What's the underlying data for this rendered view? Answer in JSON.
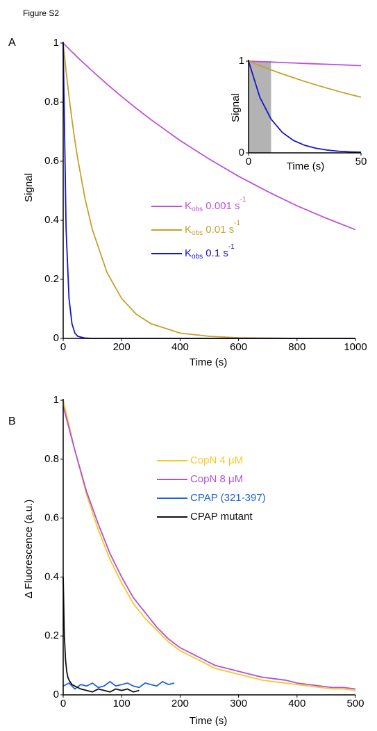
{
  "figure_label": "Figure S2",
  "chart_data": [
    {
      "type": "line",
      "panel_label": "A",
      "xlabel": "Time (s)",
      "ylabel": "Signal",
      "x": [
        0,
        10,
        20,
        30,
        40,
        50,
        75,
        100,
        150,
        200,
        250,
        300,
        400,
        500,
        600,
        700,
        800,
        900,
        1000
      ],
      "xlim": [
        0,
        1000
      ],
      "xticks": [
        0,
        200,
        400,
        600,
        800,
        1000
      ],
      "ylim": [
        0,
        1
      ],
      "yticks": [
        0,
        0.2,
        0.4,
        0.6,
        0.8,
        1
      ],
      "series": [
        {
          "name": "Kobs 0.001 s-1",
          "color": "#c050d8",
          "values": [
            1,
            0.99,
            0.98,
            0.97,
            0.961,
            0.951,
            0.928,
            0.905,
            0.861,
            0.819,
            0.779,
            0.741,
            0.67,
            0.607,
            0.549,
            0.497,
            0.449,
            0.407,
            0.368
          ]
        },
        {
          "name": "Kobs 0.01 s-1",
          "color": "#c8a028",
          "values": [
            1,
            0.905,
            0.819,
            0.741,
            0.67,
            0.607,
            0.472,
            0.368,
            0.223,
            0.135,
            0.082,
            0.05,
            0.018,
            0.007,
            0.002,
            0.001,
            0,
            0,
            0
          ]
        },
        {
          "name": "Kobs 0.1 s-1",
          "color": "#1414c8",
          "values": [
            1,
            0.368,
            0.135,
            0.05,
            0.018,
            0.007,
            0.001,
            0,
            0,
            0,
            0,
            0,
            0,
            0,
            0,
            0,
            0,
            0,
            0
          ]
        }
      ]
    },
    {
      "type": "line",
      "xlabel": "Time (s)",
      "ylabel": "Signal",
      "x": [
        0,
        5,
        10,
        15,
        20,
        25,
        30,
        35,
        40,
        45,
        50
      ],
      "xlim": [
        0,
        50
      ],
      "xticks": [
        0,
        50
      ],
      "ylim": [
        0,
        1
      ],
      "yticks": [
        0,
        1
      ],
      "shaded_region": [
        0,
        10
      ],
      "series": [
        {
          "color": "#c050d8",
          "values": [
            1,
            0.995,
            0.99,
            0.985,
            0.98,
            0.975,
            0.97,
            0.966,
            0.961,
            0.956,
            0.951
          ]
        },
        {
          "color": "#c8a028",
          "values": [
            1,
            0.951,
            0.905,
            0.861,
            0.819,
            0.779,
            0.741,
            0.705,
            0.67,
            0.638,
            0.607
          ]
        },
        {
          "color": "#1414c8",
          "values": [
            1,
            0.607,
            0.368,
            0.223,
            0.135,
            0.082,
            0.05,
            0.03,
            0.018,
            0.011,
            0.007
          ]
        }
      ]
    },
    {
      "type": "line",
      "panel_label": "B",
      "xlabel": "Time (s)",
      "ylabel": "Δ Fluorescence (a.u.)",
      "xlim": [
        0,
        500
      ],
      "xticks": [
        0,
        100,
        200,
        300,
        400,
        500
      ],
      "ylim": [
        0,
        1
      ],
      "yticks": [
        0,
        0.2,
        0.4,
        0.6,
        0.8,
        1
      ],
      "series": [
        {
          "name": "CopN 4 μM",
          "color": "#f5c825",
          "x": [
            0,
            20,
            40,
            60,
            80,
            100,
            120,
            140,
            160,
            180,
            200,
            220,
            240,
            260,
            280,
            300,
            320,
            340,
            360,
            380,
            400,
            420,
            440,
            460,
            480,
            500
          ],
          "values": [
            1,
            0.83,
            0.68,
            0.56,
            0.46,
            0.38,
            0.31,
            0.26,
            0.22,
            0.18,
            0.15,
            0.13,
            0.11,
            0.09,
            0.08,
            0.07,
            0.06,
            0.05,
            0.045,
            0.04,
            0.035,
            0.03,
            0.025,
            0.02,
            0.02,
            0.015
          ]
        },
        {
          "name": "CopN 8 μM",
          "color": "#b450d2",
          "x": [
            0,
            20,
            40,
            60,
            80,
            100,
            120,
            140,
            160,
            180,
            200,
            220,
            240,
            260,
            280,
            300,
            320,
            340,
            360,
            380,
            400,
            420,
            440,
            460,
            480,
            500
          ],
          "values": [
            0.98,
            0.83,
            0.69,
            0.58,
            0.48,
            0.4,
            0.33,
            0.28,
            0.23,
            0.19,
            0.16,
            0.14,
            0.12,
            0.1,
            0.09,
            0.08,
            0.07,
            0.06,
            0.055,
            0.05,
            0.04,
            0.035,
            0.03,
            0.025,
            0.025,
            0.02
          ]
        },
        {
          "name": "CPAP (321-397)",
          "color": "#1f62e0",
          "x": [
            0,
            10,
            20,
            30,
            40,
            50,
            60,
            70,
            80,
            90,
            100,
            110,
            120,
            130,
            140,
            150,
            160,
            170,
            180,
            190
          ],
          "values": [
            0.03,
            0.04,
            0.02,
            0.035,
            0.03,
            0.04,
            0.025,
            0.03,
            0.045,
            0.03,
            0.035,
            0.04,
            0.03,
            0.025,
            0.04,
            0.035,
            0.03,
            0.045,
            0.035,
            0.04
          ]
        },
        {
          "name": "CPAP mutant",
          "color": "#111111",
          "x": [
            0,
            2,
            4,
            6,
            8,
            10,
            15,
            20,
            30,
            40,
            50,
            60,
            70,
            80,
            90,
            100,
            110,
            120,
            130
          ],
          "values": [
            0.4,
            0.2,
            0.12,
            0.08,
            0.06,
            0.05,
            0.035,
            0.03,
            0.02,
            0.015,
            0.01,
            0.02,
            0.015,
            0.01,
            0.02,
            0.015,
            0.02,
            0.01,
            0.015
          ]
        }
      ]
    }
  ]
}
